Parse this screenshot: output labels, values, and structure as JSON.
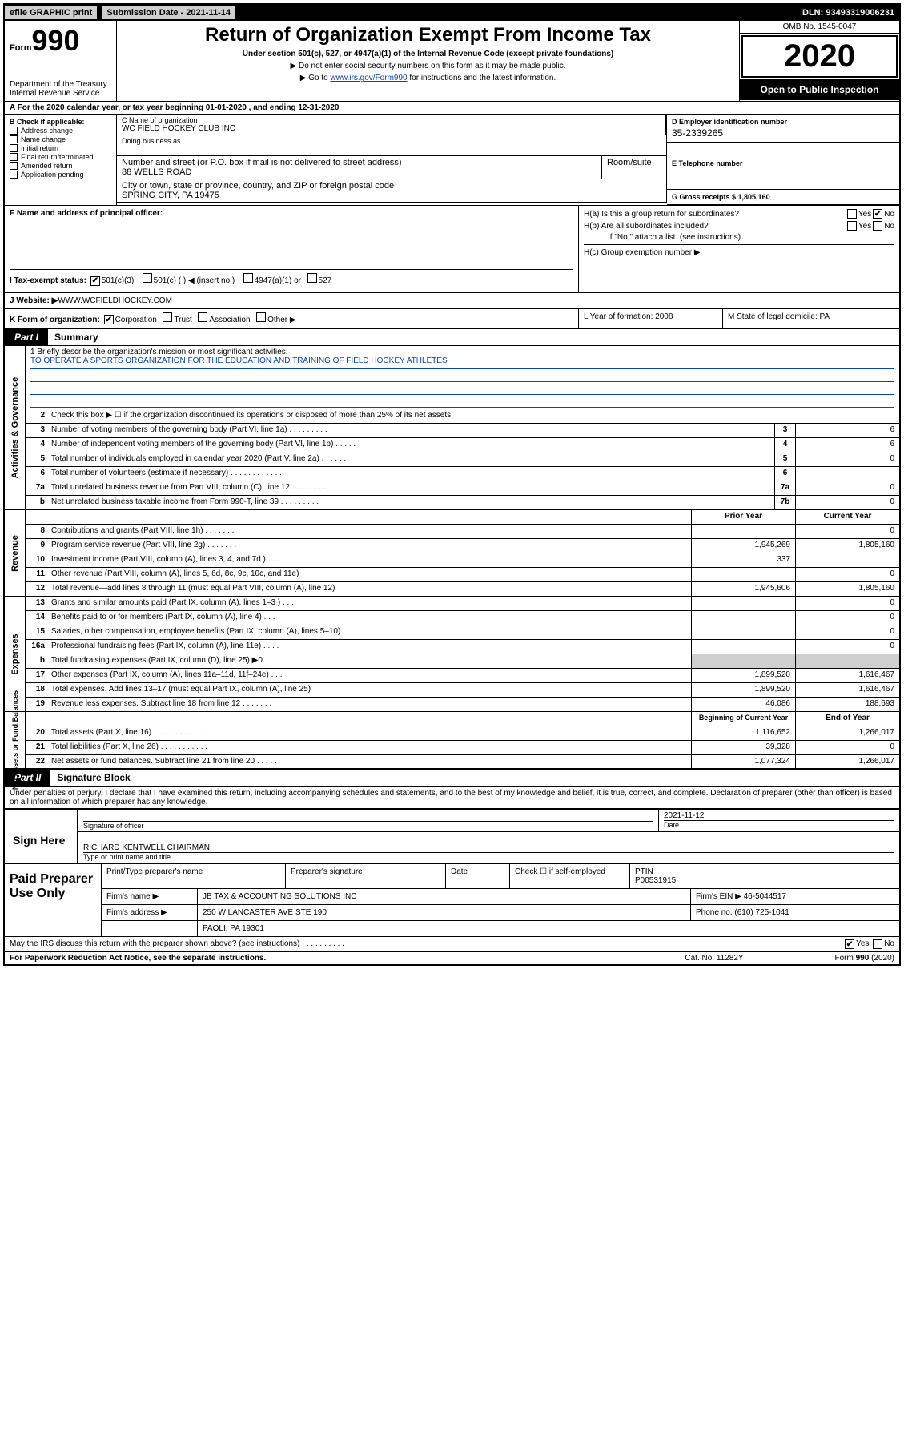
{
  "toprow": {
    "efile": "efile GRAPHIC print",
    "submission": "Submission Date - 2021-11-14",
    "dln": "DLN: 93493319006231"
  },
  "header": {
    "form": "Form",
    "formnum": "990",
    "dept": "Department of the Treasury Internal Revenue Service",
    "title": "Return of Organization Exempt From Income Tax",
    "sub": "Under section 501(c), 527, or 4947(a)(1) of the Internal Revenue Code (except private foundations)",
    "note": "▶ Do not enter social security numbers on this form as it may be made public.",
    "link_pre": "▶ Go to ",
    "link": "www.irs.gov/Form990",
    "link_post": " for instructions and the latest information.",
    "omb": "OMB No. 1545-0047",
    "year": "2020",
    "open": "Open to Public Inspection"
  },
  "row_a": "A For the 2020 calendar year, or tax year beginning 01-01-2020    , and ending 12-31-2020",
  "box_b": {
    "hdr": "B Check if applicable:",
    "items": [
      "Address change",
      "Name change",
      "Initial return",
      "Final return/terminated",
      "Amended return",
      "Application pending"
    ]
  },
  "box_c": {
    "lab": "C Name of organization",
    "name": "WC FIELD HOCKEY CLUB INC",
    "dba_lab": "Doing business as",
    "addr_lab": "Number and street (or P.O. box if mail is not delivered to street address)",
    "addr": "88 WELLS ROAD",
    "room_lab": "Room/suite",
    "city_lab": "City or town, state or province, country, and ZIP or foreign postal code",
    "city": "SPRING CITY, PA  19475"
  },
  "box_d": {
    "lab": "D Employer identification number",
    "val": "35-2339265"
  },
  "box_e": {
    "lab": "E Telephone number",
    "val": ""
  },
  "box_g": "G Gross receipts $ 1,805,160",
  "box_f": "F  Name and address of principal officer:",
  "box_h": {
    "a": "H(a)  Is this a group return for subordinates?",
    "b": "H(b)  Are all subordinates included?",
    "b_note": "If \"No,\" attach a list. (see instructions)",
    "c": "H(c)  Group exemption number ▶",
    "yes": "Yes",
    "no": "No"
  },
  "box_i": {
    "lab": "I  Tax-exempt status:",
    "opts": [
      "501(c)(3)",
      "501(c) (   ) ◀ (insert no.)",
      "4947(a)(1) or",
      "527"
    ]
  },
  "box_j": {
    "lab": "J  Website: ▶  ",
    "val": "WWW.WCFIELDHOCKEY.COM"
  },
  "box_k": "K Form of organization:",
  "box_k_opts": [
    "Corporation",
    "Trust",
    "Association",
    "Other ▶"
  ],
  "box_l": "L Year of formation: 2008",
  "box_m": "M State of legal domicile: PA",
  "part1": {
    "tab": "Part I",
    "title": "Summary"
  },
  "mission": {
    "lab": "1  Briefly describe the organization's mission or most significant activities:",
    "text": "TO OPERATE A SPORTS ORGANIZATION FOR THE EDUCATION AND TRAINING OF FIELD HOCKEY ATHLETES"
  },
  "lines_gov": [
    {
      "n": "2",
      "t": "Check this box ▶ ☐  if the organization discontinued its operations or disposed of more than 25% of its net assets.",
      "nc": "",
      "v": ""
    },
    {
      "n": "3",
      "t": "Number of voting members of the governing body (Part VI, line 1a)   .    .    .    .    .    .    .    .    .",
      "nc": "3",
      "v": "6"
    },
    {
      "n": "4",
      "t": "Number of independent voting members of the governing body (Part VI, line 1b)   .    .    .    .    .",
      "nc": "4",
      "v": "6"
    },
    {
      "n": "5",
      "t": "Total number of individuals employed in calendar year 2020 (Part V, line 2a)   .    .    .    .    .    .",
      "nc": "5",
      "v": "0"
    },
    {
      "n": "6",
      "t": "Total number of volunteers (estimate if necessary)   .    .    .    .    .    .    .    .    .    .    .    .",
      "nc": "6",
      "v": ""
    },
    {
      "n": "7a",
      "t": "Total unrelated business revenue from Part VIII, column (C), line 12   .    .    .    .    .    .    .    .",
      "nc": "7a",
      "v": "0"
    },
    {
      "n": "b",
      "t": "Net unrelated business taxable income from Form 990-T, line 39    .    .    .    .    .    .    .    .    .",
      "nc": "7b",
      "v": "0"
    }
  ],
  "col_hdr": {
    "prior": "Prior Year",
    "current": "Current Year"
  },
  "lines_rev": [
    {
      "n": "8",
      "t": "Contributions and grants (Part VIII, line 1h)   .    .    .    .    .    .    .",
      "p": "",
      "c": "0"
    },
    {
      "n": "9",
      "t": "Program service revenue (Part VIII, line 2g)   .    .    .    .    .    .    .",
      "p": "1,945,269",
      "c": "1,805,160"
    },
    {
      "n": "10",
      "t": "Investment income (Part VIII, column (A), lines 3, 4, and 7d )   .    .    .",
      "p": "337",
      "c": ""
    },
    {
      "n": "11",
      "t": "Other revenue (Part VIII, column (A), lines 5, 6d, 8c, 9c, 10c, and 11e)",
      "p": "",
      "c": "0"
    },
    {
      "n": "12",
      "t": "Total revenue—add lines 8 through 11 (must equal Part VIII, column (A), line 12)",
      "p": "1,945,606",
      "c": "1,805,160"
    }
  ],
  "lines_exp": [
    {
      "n": "13",
      "t": "Grants and similar amounts paid (Part IX, column (A), lines 1–3 )   .    .    .",
      "p": "",
      "c": "0"
    },
    {
      "n": "14",
      "t": "Benefits paid to or for members (Part IX, column (A), line 4)   .    .    .",
      "p": "",
      "c": "0"
    },
    {
      "n": "15",
      "t": "Salaries, other compensation, employee benefits (Part IX, column (A), lines 5–10)",
      "p": "",
      "c": "0"
    },
    {
      "n": "16a",
      "t": "Professional fundraising fees (Part IX, column (A), line 11e)   .    .    .    .",
      "p": "",
      "c": "0"
    },
    {
      "n": "b",
      "t": "Total fundraising expenses (Part IX, column (D), line 25) ▶0",
      "p": "gray",
      "c": "gray"
    },
    {
      "n": "17",
      "t": "Other expenses (Part IX, column (A), lines 11a–11d, 11f–24e)   .    .    .",
      "p": "1,899,520",
      "c": "1,616,467"
    },
    {
      "n": "18",
      "t": "Total expenses. Add lines 13–17 (must equal Part IX, column (A), line 25)",
      "p": "1,899,520",
      "c": "1,616,467"
    },
    {
      "n": "19",
      "t": "Revenue less expenses. Subtract line 18 from line 12   .    .    .    .    .    .    .",
      "p": "46,086",
      "c": "188,693"
    }
  ],
  "col_hdr2": {
    "prior": "Beginning of Current Year",
    "current": "End of Year"
  },
  "lines_net": [
    {
      "n": "20",
      "t": "Total assets (Part X, line 16)   .    .    .    .    .    .    .    .    .    .    .    .",
      "p": "1,116,652",
      "c": "1,266,017"
    },
    {
      "n": "21",
      "t": "Total liabilities (Part X, line 26)   .    .    .    .    .    .    .    .    .    .    .",
      "p": "39,328",
      "c": "0"
    },
    {
      "n": "22",
      "t": "Net assets or fund balances. Subtract line 21 from line 20   .    .    .    .    .",
      "p": "1,077,324",
      "c": "1,266,017"
    }
  ],
  "side_labels": {
    "gov": "Activities & Governance",
    "rev": "Revenue",
    "exp": "Expenses",
    "net": "Net Assets or Fund Balances"
  },
  "part2": {
    "tab": "Part II",
    "title": "Signature Block"
  },
  "perjury": "Under penalties of perjury, I declare that I have examined this return, including accompanying schedules and statements, and to the best of my knowledge and belief, it is true, correct, and complete. Declaration of preparer (other than officer) is based on all information of which preparer has any knowledge.",
  "sign": {
    "left": "Sign Here",
    "sig_lab": "Signature of officer",
    "date_lab": "Date",
    "date_val": "2021-11-12",
    "name_lab": "Type or print name and title",
    "name_val": "RICHARD KENTWELL  CHAIRMAN"
  },
  "preparer": {
    "left": "Paid Preparer Use Only",
    "headers": [
      "Print/Type preparer's name",
      "Preparer's signature",
      "Date"
    ],
    "self_emp": "Check ☐  if self-employed",
    "ptin_lab": "PTIN",
    "ptin": "P00531915",
    "firm_name_lab": "Firm's name    ▶",
    "firm_name": "JB TAX & ACCOUNTING SOLUTIONS INC",
    "firm_ein_lab": "Firm's EIN ▶",
    "firm_ein": "46-5044517",
    "firm_addr_lab": "Firm's address ▶",
    "firm_addr1": "250 W LANCASTER AVE STE 190",
    "firm_addr2": "PAOLI, PA  19301",
    "phone_lab": "Phone no.",
    "phone": "(610) 725-1041"
  },
  "discuss": "May the IRS discuss this return with the preparer shown above? (see instructions)   .    .    .    .    .    .    .    .    .    .",
  "discuss_yes": "Yes",
  "discuss_no": "No",
  "footer": {
    "left": "For Paperwork Reduction Act Notice, see the separate instructions.",
    "mid": "Cat. No. 11282Y",
    "right": "Form 990 (2020)"
  }
}
